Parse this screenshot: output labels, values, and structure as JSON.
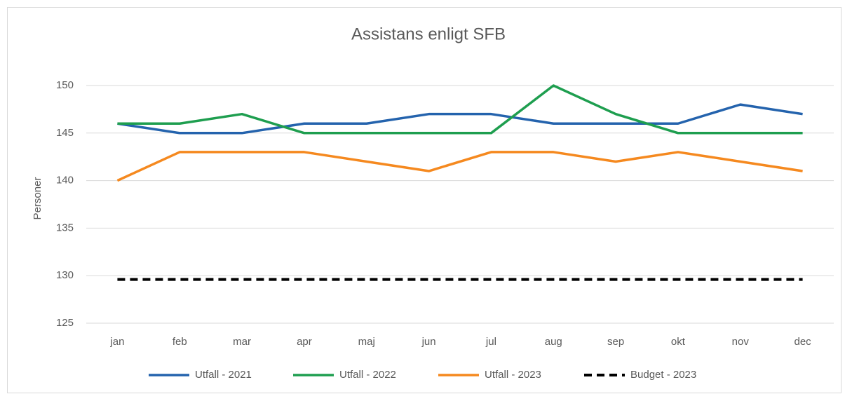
{
  "chart_data": {
    "type": "line",
    "title": "Assistans enligt SFB",
    "y_label": "Personer",
    "categories": [
      "jan",
      "feb",
      "mar",
      "apr",
      "maj",
      "jun",
      "jul",
      "aug",
      "sep",
      "okt",
      "nov",
      "dec"
    ],
    "series": [
      {
        "name": "Utfall - 2021",
        "color": "#2463ad",
        "values": [
          146,
          145,
          145,
          146,
          146,
          147,
          147,
          146,
          146,
          146,
          148,
          147
        ]
      },
      {
        "name": "Utfall - 2022",
        "color": "#1e9e4f",
        "values": [
          146,
          146,
          147,
          145,
          145,
          145,
          145,
          150,
          147,
          145,
          145,
          145
        ]
      },
      {
        "name": "Utfall - 2023",
        "color": "#f5891f",
        "values": [
          140,
          143,
          143,
          143,
          142,
          141,
          143,
          143,
          142,
          143,
          142,
          141
        ]
      },
      {
        "name": "Budget - 2023",
        "color": "#000000",
        "dashed": true,
        "values": [
          129.6,
          129.6,
          129.6,
          129.6,
          129.6,
          129.6,
          129.6,
          129.6,
          129.6,
          129.6,
          129.6,
          129.6
        ]
      }
    ],
    "ylim": [
      125,
      150
    ],
    "yticks": [
      125,
      130,
      135,
      140,
      145,
      150
    ],
    "grid": true,
    "legend": "bottom"
  }
}
